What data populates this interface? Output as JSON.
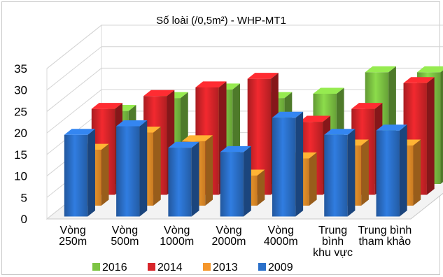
{
  "chart_data": {
    "type": "bar",
    "title": "Số loài (/0,5m²) - WHP-MT1",
    "xlabel": "",
    "ylabel": "",
    "ylim": [
      0,
      35
    ],
    "yticks": [
      "0",
      "5",
      "10",
      "15",
      "20",
      "25",
      "30",
      "35"
    ],
    "grid": true,
    "legend_position": "bottom",
    "categories": [
      [
        "Vòng",
        "250m"
      ],
      [
        "Vòng",
        "500m"
      ],
      [
        "Vòng",
        "1000m"
      ],
      [
        "Vòng",
        "2000m"
      ],
      [
        "Vòng",
        "4000m"
      ],
      [
        "Trung",
        "bình",
        "khu vực"
      ],
      [
        "Trung bình",
        "tham khảo"
      ]
    ],
    "series": [
      {
        "name": "2016",
        "color": "#7dc443",
        "values": [
          17,
          20,
          22,
          20,
          21,
          26,
          26
        ]
      },
      {
        "name": "2014",
        "color": "#d8252a",
        "values": [
          20,
          23,
          25,
          27,
          17,
          20,
          26
        ]
      },
      {
        "name": "2013",
        "color": "#f5962b",
        "values": [
          13,
          17,
          15,
          7,
          11,
          14,
          14
        ]
      },
      {
        "name": "2009",
        "color": "#2b70c9",
        "values": [
          19,
          21,
          16,
          15,
          23,
          19,
          20
        ]
      }
    ]
  }
}
